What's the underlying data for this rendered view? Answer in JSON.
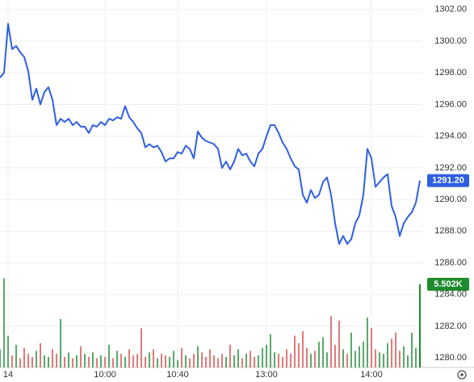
{
  "chart_data": {
    "type": "line",
    "categories": [
      null,
      null,
      "14",
      null,
      null,
      null,
      null,
      null,
      null,
      null,
      null,
      null,
      null,
      null,
      null,
      null,
      null,
      null,
      null,
      null,
      null,
      null,
      null,
      null,
      null,
      null,
      "10:00",
      null,
      null,
      null,
      null,
      null,
      null,
      null,
      null,
      null,
      null,
      null,
      null,
      null,
      null,
      null,
      null,
      null,
      "10:40",
      null,
      null,
      null,
      null,
      null,
      null,
      null,
      null,
      null,
      null,
      null,
      null,
      null,
      null,
      null,
      null,
      null,
      null,
      null,
      null,
      null,
      "13:00",
      null,
      null,
      null,
      null,
      null,
      null,
      null,
      null,
      null,
      null,
      null,
      null,
      null,
      null,
      null,
      null,
      null,
      null,
      null,
      null,
      null,
      null,
      null,
      null,
      null,
      "14:00",
      null,
      null,
      null,
      null,
      null,
      null,
      null,
      null,
      null,
      null,
      null,
      null
    ],
    "series": [
      {
        "color": "#2f5fe0",
        "values": [
          1297.7,
          1298.0,
          1301.1,
          1299.5,
          1299.7,
          1299.3,
          1299.0,
          1298.1,
          1296.3,
          1297.0,
          1296.0,
          1296.8,
          1297.1,
          1296.3,
          1294.7,
          1295.1,
          1294.9,
          1295.1,
          1294.7,
          1294.9,
          1294.6,
          1294.6,
          1294.2,
          1294.7,
          1294.6,
          1294.9,
          1294.7,
          1295.1,
          1295.0,
          1295.2,
          1295.1,
          1295.9,
          1295.2,
          1294.9,
          1294.5,
          1294.2,
          1293.3,
          1293.5,
          1293.3,
          1293.4,
          1293.0,
          1292.4,
          1292.6,
          1292.6,
          1293.0,
          1292.9,
          1293.4,
          1293.2,
          1292.6,
          1294.3,
          1293.9,
          1293.7,
          1293.6,
          1293.5,
          1293.2,
          1292.0,
          1292.4,
          1291.9,
          1292.4,
          1293.2,
          1292.8,
          1292.9,
          1292.4,
          1292.1,
          1292.9,
          1293.2,
          1294.0,
          1294.7,
          1294.7,
          1294.2,
          1293.6,
          1293.2,
          1292.6,
          1292.1,
          1291.9,
          1290.3,
          1289.8,
          1290.6,
          1290.1,
          1290.3,
          1291.1,
          1291.4,
          1290.3,
          1288.5,
          1287.2,
          1287.7,
          1287.2,
          1287.5,
          1288.5,
          1289.0,
          1290.3,
          1293.2,
          1292.6,
          1290.8,
          1291.1,
          1291.4,
          1291.6,
          1289.6,
          1288.9,
          1287.7,
          1288.5,
          1288.9,
          1289.2,
          1289.8,
          1291.2
        ],
        "last_value_label": "1291.20"
      },
      {
        "type": "bar",
        "axis": "y2",
        "up_color": "#5aa86a",
        "down_color": "#e07a7a",
        "last_color": "#1e8a2e",
        "values": [
          1200,
          5900,
          2100,
          800,
          1500,
          600,
          1300,
          900,
          700,
          1100,
          1600,
          800,
          700,
          1200,
          900,
          3200,
          700,
          1000,
          600,
          800,
          1400,
          900,
          700,
          1000,
          600,
          800,
          700,
          1500,
          600,
          1100,
          900,
          700,
          1200,
          800,
          900,
          2600,
          700,
          1000,
          1200,
          600,
          900,
          800,
          700,
          1100,
          500,
          1300,
          800,
          600,
          900,
          1400,
          1000,
          700,
          1200,
          800,
          600,
          900,
          700,
          1500,
          800,
          1200,
          600,
          900,
          1100,
          700,
          800,
          1300,
          1500,
          2200,
          1000,
          900,
          700,
          1200,
          900,
          2100,
          1600,
          2400,
          1300,
          900,
          1100,
          1700,
          2000,
          1000,
          3400,
          1500,
          3100,
          1200,
          900,
          2300,
          1100,
          1400,
          1700,
          3300,
          2600,
          1200,
          1000,
          900,
          1600,
          1900,
          2300,
          1100,
          1400,
          800,
          2300,
          1300,
          5502
        ],
        "last_value_label": "5.502K"
      }
    ],
    "ylim": [
      1279.4,
      1302.6
    ],
    "yticks": [
      {
        "value": 1280,
        "label": "1280.00"
      },
      {
        "value": 1282,
        "label": "1282.00"
      },
      {
        "value": 1284,
        "label": "1284.00"
      },
      {
        "value": 1286,
        "label": "1286.00"
      },
      {
        "value": 1288,
        "label": "1288.00"
      },
      {
        "value": 1290,
        "label": "1290.00"
      },
      {
        "value": 1292,
        "label": "1292.00"
      },
      {
        "value": 1294,
        "label": "1294.00"
      },
      {
        "value": 1296,
        "label": "1296.00"
      },
      {
        "value": 1298,
        "label": "1298.00"
      },
      {
        "value": 1300,
        "label": "1300.00"
      },
      {
        "value": 1302,
        "label": "1302.00"
      }
    ],
    "y2lim": [
      0,
      24300
    ],
    "grid": true
  }
}
